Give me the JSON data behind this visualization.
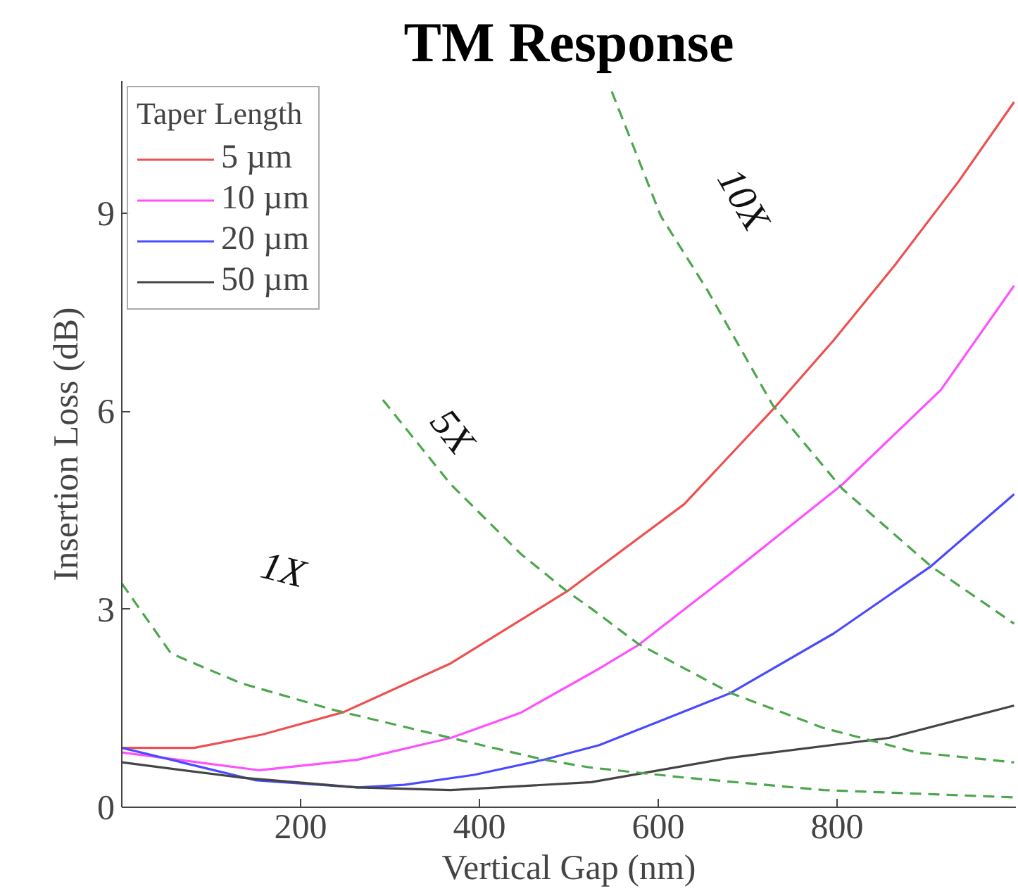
{
  "chart_data": {
    "type": "line",
    "title": "TM Response",
    "xlabel": "Vertical Gap (nm)",
    "ylabel": "Insertion Loss (dB)",
    "legend_title": "Taper Length",
    "xlim": [
      0,
      1000
    ],
    "ylim": [
      0,
      11
    ],
    "xticks": [
      200,
      400,
      600,
      800
    ],
    "yticks": [
      0,
      3,
      6,
      9
    ],
    "grid": false,
    "legend": "top left",
    "line_style": "solid",
    "series": [
      {
        "name": "5 µm",
        "color": "#ee5050",
        "x": [
          0,
          81,
          157,
          248,
          368,
          498,
          629,
          728,
          796,
          864,
          936,
          998
        ],
        "values": [
          0.9,
          0.9,
          1.1,
          1.44,
          2.18,
          3.27,
          4.59,
          6.02,
          7.07,
          8.2,
          9.48,
          10.68
        ]
      },
      {
        "name": "10 µm",
        "color": "#ff50ff",
        "x": [
          0,
          154,
          264,
          368,
          446,
          534,
          577,
          681,
          806,
          916,
          998
        ],
        "values": [
          0.83,
          0.56,
          0.72,
          1.05,
          1.43,
          2.1,
          2.45,
          3.54,
          4.89,
          6.32,
          7.9
        ]
      },
      {
        "name": "20 µm",
        "color": "#4a4aff",
        "x": [
          0,
          149,
          264,
          316,
          394,
          472,
          534,
          681,
          796,
          905,
          998
        ],
        "values": [
          0.9,
          0.41,
          0.3,
          0.34,
          0.49,
          0.72,
          0.94,
          1.73,
          2.63,
          3.65,
          4.74
        ]
      },
      {
        "name": "50 µm",
        "color": "#444444",
        "x": [
          0,
          133,
          264,
          368,
          525,
          681,
          858,
          998
        ],
        "values": [
          0.68,
          0.45,
          0.3,
          0.26,
          0.38,
          0.75,
          1.05,
          1.54
        ]
      },
      {
        "color": "#4ca64c",
        "line_style": "dashed",
        "x": [
          0,
          55,
          133,
          238,
          368,
          472,
          525,
          629,
          785,
          998
        ],
        "values": [
          3.39,
          2.33,
          1.88,
          1.47,
          1.05,
          0.72,
          0.6,
          0.45,
          0.26,
          0.15
        ]
      },
      {
        "color": "#4ca64c",
        "line_style": "dashed",
        "x": [
          292,
          368,
          446,
          498,
          525,
          577,
          681,
          785,
          889,
          998
        ],
        "values": [
          6.17,
          4.89,
          3.84,
          3.27,
          3.01,
          2.48,
          1.73,
          1.2,
          0.83,
          0.68
        ]
      },
      {
        "color": "#4ca64c",
        "line_style": "dashed",
        "x": [
          548,
          603,
          655,
          728,
          806,
          905,
          998
        ],
        "values": [
          10.84,
          8.95,
          7.83,
          6.09,
          4.82,
          3.65,
          2.78
        ]
      }
    ],
    "annotations": [
      "1X",
      "5X",
      "10X"
    ]
  }
}
